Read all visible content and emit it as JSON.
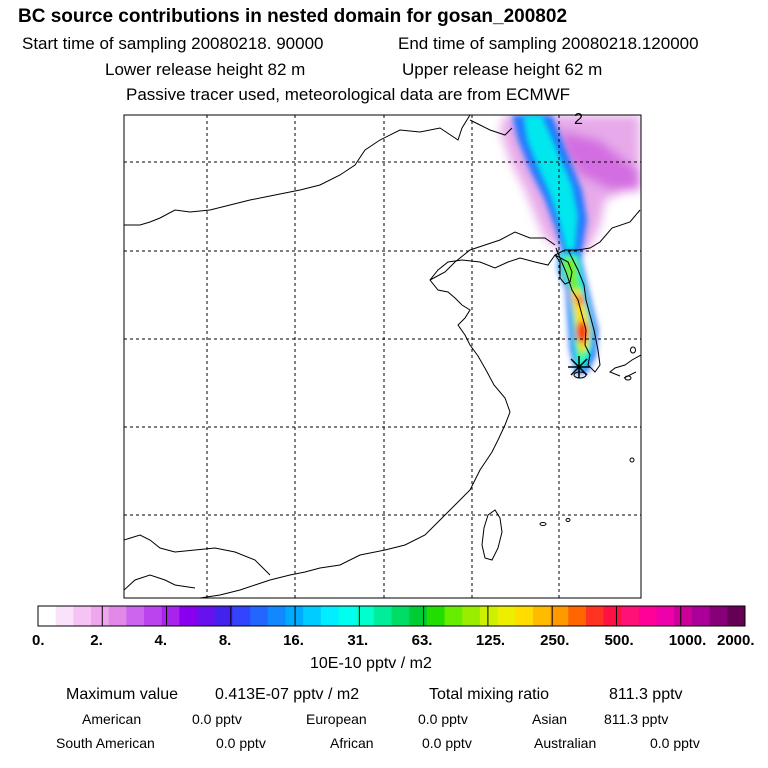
{
  "header": {
    "title": "BC  source contributions in nested domain for gosan_200802",
    "start_time": "Start time of sampling 20080218. 90000",
    "end_time": "End time of sampling 20080218.120000",
    "lower_height": "Lower release height   82 m",
    "upper_height": "Upper release height   62 m",
    "tracer_note": "Passive tracer used, meteorological data are from ECMWF"
  },
  "map": {
    "corner_label": "2",
    "station_marker": "asterisk-icon"
  },
  "colorbar": {
    "tick_labels": [
      "0.",
      "2.",
      "4.",
      "8.",
      "16.",
      "31.",
      "63.",
      "125.",
      "250.",
      "500.",
      "1000.",
      "2000."
    ],
    "colors": [
      "#ffffff",
      "#fbe2fb",
      "#f5c4f5",
      "#eea7ee",
      "#e289e8",
      "#cc66ee",
      "#bb44ee",
      "#aa22ee",
      "#8800ee",
      "#6611ee",
      "#4422ee",
      "#3344ff",
      "#2266ff",
      "#1188ff",
      "#00aaff",
      "#00ccff",
      "#00eeff",
      "#00ffee",
      "#00ffcc",
      "#00ee99",
      "#00dd66",
      "#00cc33",
      "#22dd00",
      "#66ee00",
      "#99ee00",
      "#ccf000",
      "#eeee00",
      "#ffdd00",
      "#ffbb00",
      "#ff9900",
      "#ff6600",
      "#ff3322",
      "#ff1144",
      "#ff1177",
      "#ff0099",
      "#ee00aa",
      "#cc0099",
      "#aa0099",
      "#880077",
      "#660055"
    ],
    "unit": "10E-10 pptv / m2"
  },
  "summary": {
    "max_label": "Maximum value",
    "max_value": "0.413E-07 pptv / m2",
    "total_label": "Total mixing ratio",
    "total_value": "811.3 pptv",
    "regions": [
      {
        "name": "American",
        "value": "0.0 pptv"
      },
      {
        "name": "European",
        "value": "0.0 pptv"
      },
      {
        "name": "Asian",
        "value": "811.3 pptv"
      },
      {
        "name": "South American",
        "value": "0.0 pptv"
      },
      {
        "name": "African",
        "value": "0.0 pptv"
      },
      {
        "name": "Australian",
        "value": "0.0 pptv"
      }
    ]
  }
}
